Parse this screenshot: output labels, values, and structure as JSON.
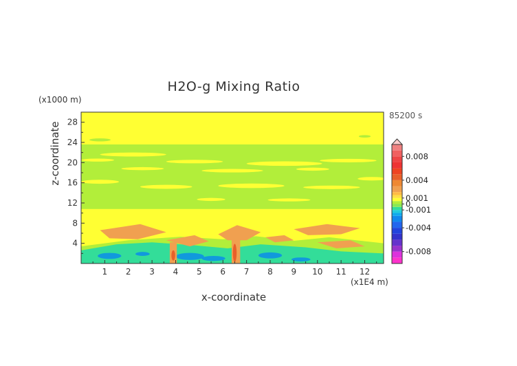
{
  "chart_data": {
    "type": "heatmap",
    "title": "H2O-g Mixing Ratio",
    "time_label": "85200 s",
    "xlabel": "x-coordinate",
    "ylabel": "z-coordinate",
    "x_unit": "(x1E4 m)",
    "y_unit": "(x1000 m)",
    "xlim": [
      0,
      12.8
    ],
    "ylim": [
      0,
      30
    ],
    "x_ticks": [
      "1",
      "2",
      "3",
      "4",
      "5",
      "6",
      "7",
      "8",
      "9",
      "10",
      "11",
      "12"
    ],
    "y_ticks": [
      "4",
      "8",
      "12",
      "16",
      "20",
      "24",
      "28"
    ],
    "colorbar": {
      "range": [
        -0.01,
        0.01
      ],
      "tick_labels": [
        "0.008",
        "0.004",
        "0.001",
        "0",
        "-0.001",
        "-0.004",
        "-0.008"
      ],
      "tick_values": [
        0.008,
        0.004,
        0.001,
        0,
        -0.001,
        -0.004,
        -0.008
      ],
      "extend_top": true
    },
    "colors": {
      "strong_positive": "#e8602a",
      "positive": "#f0a050",
      "weak_positive": "#ffff33",
      "weak_negative": "#b2ee3a",
      "negative": "#33dd99",
      "strong_negative": "#1199dd"
    },
    "regions": [
      {
        "level": "weak_positive",
        "note": "background 0 to 0.001, z 11-30 and 0-11"
      },
      {
        "level": "weak_negative",
        "note": "banded layer z 11-24"
      }
    ]
  }
}
